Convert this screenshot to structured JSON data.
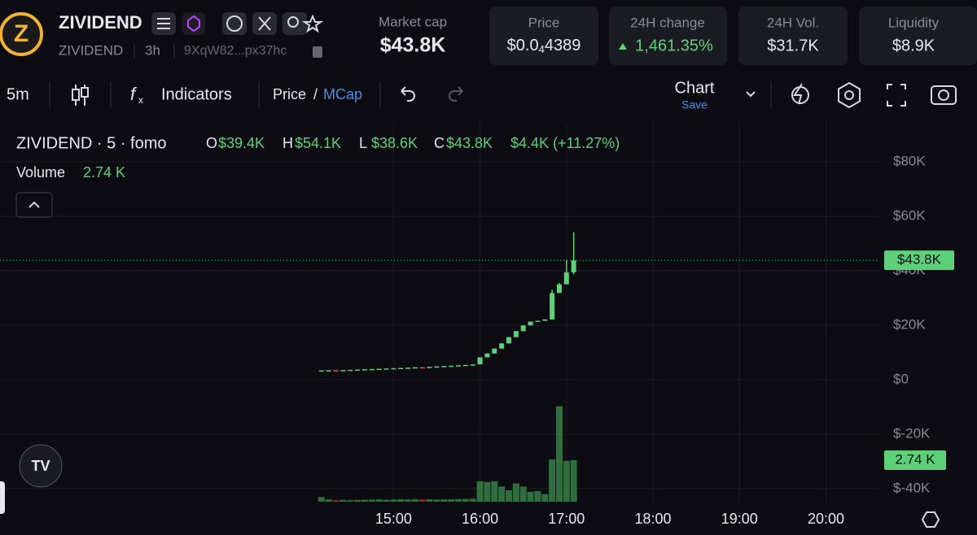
{
  "header": {
    "name": "ZIVIDEND",
    "ticker": "ZIVIDEND",
    "age": "3h",
    "address": "9XqW82...px37hc",
    "market_cap": {
      "label": "Market cap",
      "value": "$43.8K"
    },
    "price": {
      "label": "Price",
      "value": "$0.0",
      "subscript": "4",
      "value_end": "4389"
    },
    "change": {
      "label": "24H change",
      "value": "1,461.35%"
    },
    "volume": {
      "label": "24H Vol.",
      "value": "$31.7K"
    },
    "liquidity": {
      "label": "Liquidity",
      "value": "$8.9K"
    }
  },
  "toolbar": {
    "interval": "5m",
    "indicators": "Indicators",
    "price": "Price",
    "separator": "/",
    "mcap": "MCap",
    "chart": "Chart",
    "save": "Save"
  },
  "legend": {
    "title": "ZIVIDEND · 5 · fomo",
    "ohlc": [
      {
        "key": "O",
        "value": "$39.4K"
      },
      {
        "key": "H",
        "value": "$54.1K"
      },
      {
        "key": "L",
        "value": "$38.6K"
      },
      {
        "key": "C",
        "value": "$43.8K"
      }
    ],
    "change": "$4.4K (+11.27%)",
    "volume_label": "Volume",
    "volume_value": "2.74 K"
  },
  "chart_data": {
    "type": "candlestick",
    "x": [
      850,
      855,
      860,
      865,
      870,
      875,
      880,
      885,
      890,
      895,
      900,
      905,
      910,
      915,
      920,
      925,
      930,
      935,
      940,
      945,
      950,
      955,
      960,
      965,
      970,
      975,
      980,
      985,
      990,
      995,
      1000,
      1005,
      1010,
      1015,
      1020,
      1025
    ],
    "open": [
      3300,
      3400,
      3450,
      3350,
      3500,
      3600,
      3700,
      3800,
      3900,
      4000,
      4100,
      4200,
      4300,
      4400,
      4550,
      4450,
      4700,
      4850,
      5000,
      5100,
      5250,
      5400,
      5600,
      8200,
      9600,
      11400,
      13300,
      15600,
      17800,
      19900,
      21300,
      21600,
      22100,
      31800,
      35000,
      39400
    ],
    "high": [
      3400,
      3450,
      3450,
      3500,
      3600,
      3700,
      3800,
      3900,
      4000,
      4100,
      4200,
      4300,
      4400,
      4550,
      4550,
      4700,
      4850,
      5000,
      5100,
      5250,
      5400,
      5600,
      8200,
      9600,
      11400,
      13300,
      15600,
      17800,
      19900,
      21300,
      21600,
      22100,
      33000,
      35500,
      43800,
      54100
    ],
    "low": [
      3300,
      3400,
      3350,
      3350,
      3500,
      3600,
      3700,
      3800,
      3900,
      4000,
      4100,
      4200,
      4300,
      4400,
      4450,
      4450,
      4700,
      4850,
      5000,
      5100,
      5250,
      5400,
      5600,
      8200,
      9600,
      11400,
      13300,
      15600,
      17800,
      19900,
      21300,
      21600,
      22100,
      31800,
      35000,
      38600
    ],
    "close": [
      3400,
      3450,
      3350,
      3500,
      3600,
      3700,
      3800,
      3900,
      4000,
      4100,
      4200,
      4300,
      4400,
      4550,
      4450,
      4700,
      4850,
      5000,
      5100,
      5250,
      5400,
      5600,
      8200,
      9600,
      11400,
      13300,
      15600,
      17800,
      19900,
      21300,
      21600,
      22100,
      31800,
      35000,
      39400,
      43800
    ],
    "volume": [
      300,
      150,
      100,
      120,
      100,
      120,
      130,
      140,
      150,
      130,
      140,
      160,
      150,
      170,
      150,
      160,
      140,
      150,
      160,
      170,
      180,
      200,
      1350,
      1300,
      1350,
      1000,
      750,
      1200,
      1000,
      650,
      700,
      500,
      2800,
      6300,
      2700,
      2740
    ],
    "xlim": [
      627,
      1237
    ],
    "xticks": [
      {
        "value": 900,
        "label": "15:00"
      },
      {
        "value": 960,
        "label": "16:00"
      },
      {
        "value": 1020,
        "label": "17:00"
      },
      {
        "value": 1080,
        "label": "18:00"
      },
      {
        "value": 1140,
        "label": "19:00"
      },
      {
        "value": 1200,
        "label": "20:00"
      }
    ],
    "ylim": [
      -45700,
      94600
    ],
    "yticks": [
      {
        "value": 80000,
        "label": "$80K"
      },
      {
        "value": 60000,
        "label": "$60K"
      },
      {
        "value": 40000,
        "label": "$40K"
      },
      {
        "value": 20000,
        "label": "$20K"
      },
      {
        "value": 0,
        "label": "$0"
      },
      {
        "value": -20000,
        "label": "$-20K"
      },
      {
        "value": -40000,
        "label": "$-40K"
      }
    ],
    "last_price": {
      "value": 43800,
      "label": "$43.8K"
    },
    "last_volume": {
      "value": 2740,
      "label": "2.74 K"
    },
    "up_color": "#5fd07a",
    "down_color": "#e5534b",
    "volume_up_color": "#2f6e3f",
    "volume_down_color": "#7a2e2e",
    "grid": true
  }
}
